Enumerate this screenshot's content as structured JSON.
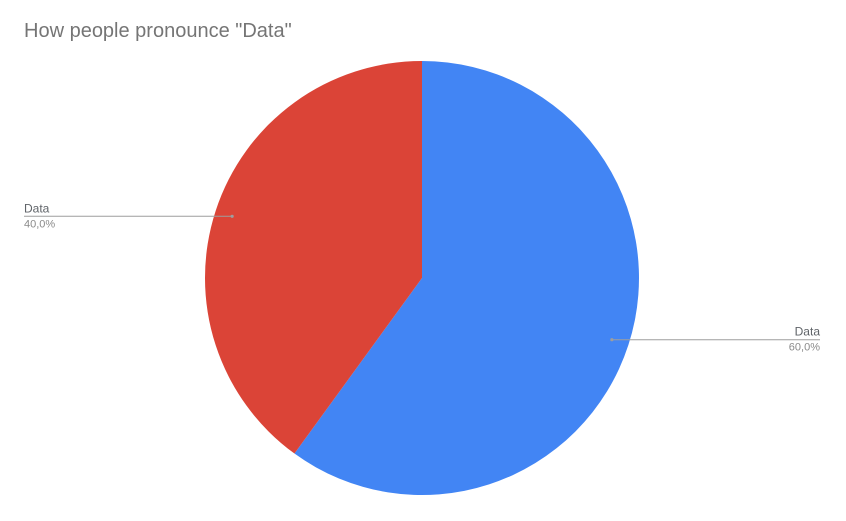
{
  "chart_data": {
    "type": "pie",
    "title": "How people pronounce \"Data\"",
    "slices": [
      {
        "label": "Data",
        "value": 60.0,
        "value_label": "60,0%",
        "color": "#4285f4"
      },
      {
        "label": "Data",
        "value": 40.0,
        "value_label": "40,0%",
        "color": "#db4437"
      }
    ],
    "start_angle_deg": 0,
    "direction": "clockwise",
    "legend": "none",
    "label_placement": "outside"
  }
}
